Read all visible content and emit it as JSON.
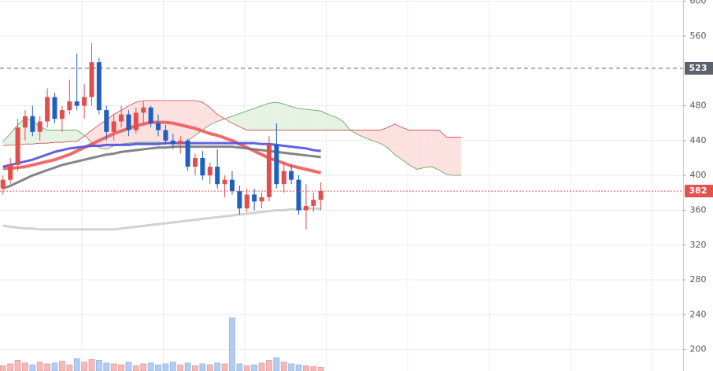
{
  "chart_data": {
    "type": "candlestick",
    "ylim": [
      175.3,
      601.5
    ],
    "yticks": [
      200,
      240,
      280,
      320,
      360,
      400,
      440,
      480,
      560,
      600
    ],
    "xlim": [
      -0.4,
      92
    ],
    "up_color": "#e04e4e",
    "down_color": "#1f5fbf",
    "open": [
      385,
      395,
      412,
      455,
      468,
      450,
      462,
      490,
      465,
      475,
      485,
      480,
      490,
      530,
      475,
      450,
      462,
      470,
      452,
      472,
      478,
      460,
      452,
      440,
      436,
      440,
      410,
      420,
      400,
      410,
      390,
      395,
      382,
      362,
      378,
      370,
      375,
      435,
      390,
      405,
      395,
      360,
      365,
      372
    ],
    "high": [
      400,
      420,
      465,
      475,
      480,
      468,
      500,
      495,
      480,
      510,
      540,
      505,
      552,
      535,
      480,
      470,
      480,
      475,
      478,
      485,
      480,
      470,
      458,
      448,
      445,
      442,
      425,
      428,
      415,
      430,
      400,
      405,
      388,
      385,
      385,
      380,
      445,
      460,
      415,
      412,
      400,
      390,
      380,
      392
    ],
    "low": [
      378,
      390,
      405,
      440,
      445,
      440,
      455,
      460,
      450,
      470,
      475,
      465,
      480,
      470,
      440,
      440,
      455,
      445,
      448,
      460,
      455,
      445,
      435,
      430,
      425,
      405,
      400,
      395,
      390,
      385,
      375,
      378,
      355,
      358,
      360,
      362,
      370,
      385,
      380,
      390,
      355,
      338,
      358,
      360
    ],
    "close": [
      395,
      412,
      455,
      468,
      450,
      462,
      490,
      465,
      475,
      485,
      480,
      490,
      530,
      475,
      450,
      462,
      470,
      452,
      472,
      478,
      460,
      452,
      440,
      436,
      440,
      410,
      420,
      400,
      410,
      390,
      395,
      382,
      362,
      378,
      370,
      375,
      435,
      390,
      405,
      395,
      360,
      365,
      372,
      382
    ],
    "volume": [
      6,
      8,
      12,
      9,
      7,
      10,
      8,
      9,
      11,
      7,
      14,
      10,
      13,
      12,
      9,
      8,
      7,
      10,
      6,
      8,
      9,
      7,
      8,
      10,
      7,
      9,
      6,
      8,
      7,
      9,
      8,
      60,
      8,
      6,
      7,
      9,
      12,
      15,
      10,
      8,
      7,
      6,
      5,
      4
    ],
    "volume_lim": [
      0,
      80
    ],
    "series": [
      {
        "color": "#f05a5a",
        "width": 4,
        "values": [
          408,
          408,
          409,
          410,
          412,
          414,
          416,
          418,
          421,
          424,
          428,
          432,
          436,
          440,
          444,
          448,
          451,
          454,
          457,
          459,
          461,
          461,
          461,
          460,
          458,
          456,
          454,
          451,
          448,
          446,
          443,
          440,
          436,
          432,
          428,
          424,
          420,
          417,
          414,
          411,
          409,
          407,
          405,
          403
        ]
      },
      {
        "color": "#5050e0",
        "width": 3,
        "values": [
          410,
          412,
          414,
          416,
          418,
          421,
          424,
          427,
          429,
          431,
          432,
          433,
          434,
          434,
          435,
          435,
          435,
          435,
          436,
          436,
          436,
          436,
          437,
          437,
          437,
          437,
          437,
          437,
          437,
          437,
          437,
          437,
          437,
          437,
          437,
          436,
          436,
          435,
          434,
          433,
          432,
          431,
          429,
          428
        ]
      },
      {
        "color": "#777777",
        "width": 3,
        "values": [
          385,
          388,
          392,
          396,
          400,
          403,
          406,
          409,
          412,
          414,
          416,
          418,
          420,
          422,
          424,
          425,
          427,
          428,
          429,
          430,
          431,
          432,
          432,
          433,
          433,
          433,
          433,
          433,
          433,
          433,
          433,
          433,
          432,
          431,
          430,
          429,
          428,
          427,
          426,
          425,
          424,
          423,
          422,
          421
        ]
      },
      {
        "color": "#cccccc",
        "width": 3,
        "values": [
          342,
          341,
          340,
          339,
          339,
          338,
          338,
          338,
          338,
          338,
          338,
          338,
          338,
          338,
          338,
          338,
          339,
          340,
          341,
          342,
          343,
          344,
          345,
          346,
          347,
          348,
          349,
          350,
          351,
          352,
          353,
          354,
          355,
          356,
          357,
          358,
          359,
          360,
          360,
          361,
          361,
          362,
          362,
          362
        ]
      }
    ],
    "cloud": {
      "span_a": {
        "color": "#5aa05a",
        "values": [
          439,
          448,
          458,
          466,
          462,
          456,
          452,
          452,
          452,
          452,
          452,
          446,
          438,
          432,
          430,
          434,
          436,
          437,
          438,
          438,
          438,
          438,
          437,
          437,
          436,
          440,
          446,
          452,
          458,
          462,
          465,
          468,
          471,
          474,
          477,
          480,
          483,
          484,
          482,
          479,
          477,
          476,
          475,
          474,
          470,
          467,
          462,
          452,
          447,
          443,
          440,
          437,
          432,
          424,
          418,
          412,
          407,
          409,
          410,
          406,
          401,
          400,
          400
        ]
      },
      "span_b": {
        "color": "#c84a4a",
        "values": [
          434,
          435,
          435,
          436,
          436,
          437,
          437,
          438,
          438,
          439,
          439,
          445,
          452,
          458,
          464,
          470,
          475,
          480,
          484,
          486,
          486,
          486,
          486,
          486,
          486,
          486,
          486,
          484,
          478,
          470,
          465,
          460,
          456,
          452,
          452,
          452,
          452,
          452,
          452,
          452,
          452,
          452,
          452,
          452,
          452,
          452,
          452,
          452,
          452,
          452,
          452,
          452,
          455,
          459,
          455,
          452,
          452,
          452,
          452,
          452,
          444,
          444,
          444
        ]
      },
      "up_fill": "#e6f2e3",
      "down_fill": "#fde0e0"
    },
    "price_lines": [
      {
        "value": 523,
        "color": "#5d6169"
      },
      {
        "value": 382,
        "color": "#e35050"
      }
    ]
  }
}
